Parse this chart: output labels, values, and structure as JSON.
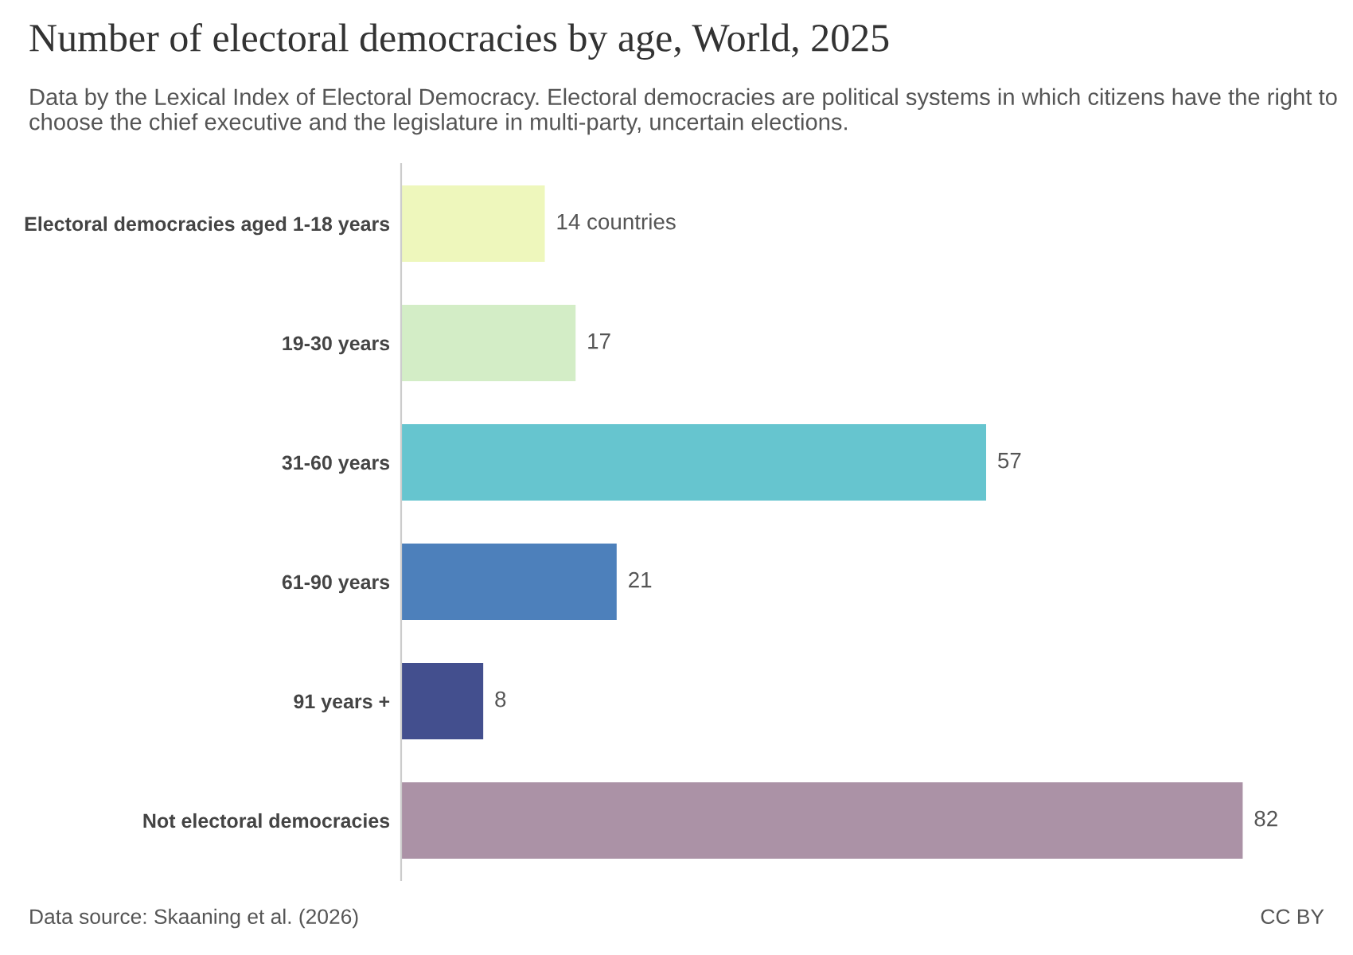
{
  "chart_data": {
    "type": "bar",
    "orientation": "horizontal",
    "title": "Number of electoral democracies by age, World, 2025",
    "subtitle": "Data by the Lexical Index of Electoral Democracy. Electoral democracies are political systems in which citizens have the right to choose the chief executive and the legislature in multi-party, uncertain elections.",
    "categories": [
      "Electoral democracies aged 1-18 years",
      "19-30 years",
      "31-60 years",
      "61-90 years",
      "91 years +",
      "Not electoral democracies"
    ],
    "values": [
      14,
      17,
      57,
      21,
      8,
      82
    ],
    "colors": [
      "#eef7bc",
      "#d3edc6",
      "#66c5cf",
      "#4d80bb",
      "#434f8e",
      "#ab92a6"
    ],
    "value_labels": [
      "14 countries",
      "17",
      "57",
      "21",
      "8",
      "82"
    ],
    "annotations": [
      "Data source: Skaaning et al. (2026)",
      "CC BY"
    ],
    "grid": false,
    "legend": false
  }
}
